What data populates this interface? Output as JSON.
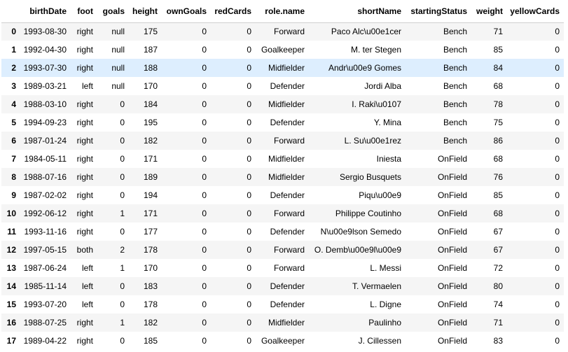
{
  "table": {
    "columns": [
      "",
      "birthDate",
      "foot",
      "goals",
      "height",
      "ownGoals",
      "redCards",
      "role.name",
      "shortName",
      "startingStatus",
      "weight",
      "yellowCards"
    ],
    "rows": [
      [
        "0",
        "1993-08-30",
        "right",
        "null",
        "175",
        "0",
        "0",
        "Forward",
        "Paco Alc\\u00e1cer",
        "Bench",
        "71",
        "0"
      ],
      [
        "1",
        "1992-04-30",
        "right",
        "null",
        "187",
        "0",
        "0",
        "Goalkeeper",
        "M. ter Stegen",
        "Bench",
        "85",
        "0"
      ],
      [
        "2",
        "1993-07-30",
        "right",
        "null",
        "188",
        "0",
        "0",
        "Midfielder",
        "Andr\\u00e9 Gomes",
        "Bench",
        "84",
        "0"
      ],
      [
        "3",
        "1989-03-21",
        "left",
        "null",
        "170",
        "0",
        "0",
        "Defender",
        "Jordi Alba",
        "Bench",
        "68",
        "0"
      ],
      [
        "4",
        "1988-03-10",
        "right",
        "0",
        "184",
        "0",
        "0",
        "Midfielder",
        "I. Raki\\u0107",
        "Bench",
        "78",
        "0"
      ],
      [
        "5",
        "1994-09-23",
        "right",
        "0",
        "195",
        "0",
        "0",
        "Defender",
        "Y. Mina",
        "Bench",
        "75",
        "0"
      ],
      [
        "6",
        "1987-01-24",
        "right",
        "0",
        "182",
        "0",
        "0",
        "Forward",
        "L. Su\\u00e1rez",
        "Bench",
        "86",
        "0"
      ],
      [
        "7",
        "1984-05-11",
        "right",
        "0",
        "171",
        "0",
        "0",
        "Midfielder",
        "Iniesta",
        "OnField",
        "68",
        "0"
      ],
      [
        "8",
        "1988-07-16",
        "right",
        "0",
        "189",
        "0",
        "0",
        "Midfielder",
        "Sergio Busquets",
        "OnField",
        "76",
        "0"
      ],
      [
        "9",
        "1987-02-02",
        "right",
        "0",
        "194",
        "0",
        "0",
        "Defender",
        "Piqu\\u00e9",
        "OnField",
        "85",
        "0"
      ],
      [
        "10",
        "1992-06-12",
        "right",
        "1",
        "171",
        "0",
        "0",
        "Forward",
        "Philippe Coutinho",
        "OnField",
        "68",
        "0"
      ],
      [
        "11",
        "1993-11-16",
        "right",
        "0",
        "177",
        "0",
        "0",
        "Defender",
        "N\\u00e9lson Semedo",
        "OnField",
        "67",
        "0"
      ],
      [
        "12",
        "1997-05-15",
        "both",
        "2",
        "178",
        "0",
        "0",
        "Forward",
        "O. Demb\\u00e9l\\u00e9",
        "OnField",
        "67",
        "0"
      ],
      [
        "13",
        "1987-06-24",
        "left",
        "1",
        "170",
        "0",
        "0",
        "Forward",
        "L. Messi",
        "OnField",
        "72",
        "0"
      ],
      [
        "14",
        "1985-11-14",
        "left",
        "0",
        "183",
        "0",
        "0",
        "Defender",
        "T. Vermaelen",
        "OnField",
        "80",
        "0"
      ],
      [
        "15",
        "1993-07-20",
        "left",
        "0",
        "178",
        "0",
        "0",
        "Defender",
        "L. Digne",
        "OnField",
        "74",
        "0"
      ],
      [
        "16",
        "1988-07-25",
        "right",
        "1",
        "182",
        "0",
        "0",
        "Midfielder",
        "Paulinho",
        "OnField",
        "71",
        "0"
      ],
      [
        "17",
        "1989-04-22",
        "right",
        "0",
        "185",
        "0",
        "0",
        "Goalkeeper",
        "J. Cillessen",
        "OnField",
        "83",
        "0"
      ]
    ],
    "hovered_row": 2,
    "colors": {
      "stripe": "#f5f5f5",
      "hover": "#ddeefe",
      "header_border": "#cfcfcf"
    }
  }
}
